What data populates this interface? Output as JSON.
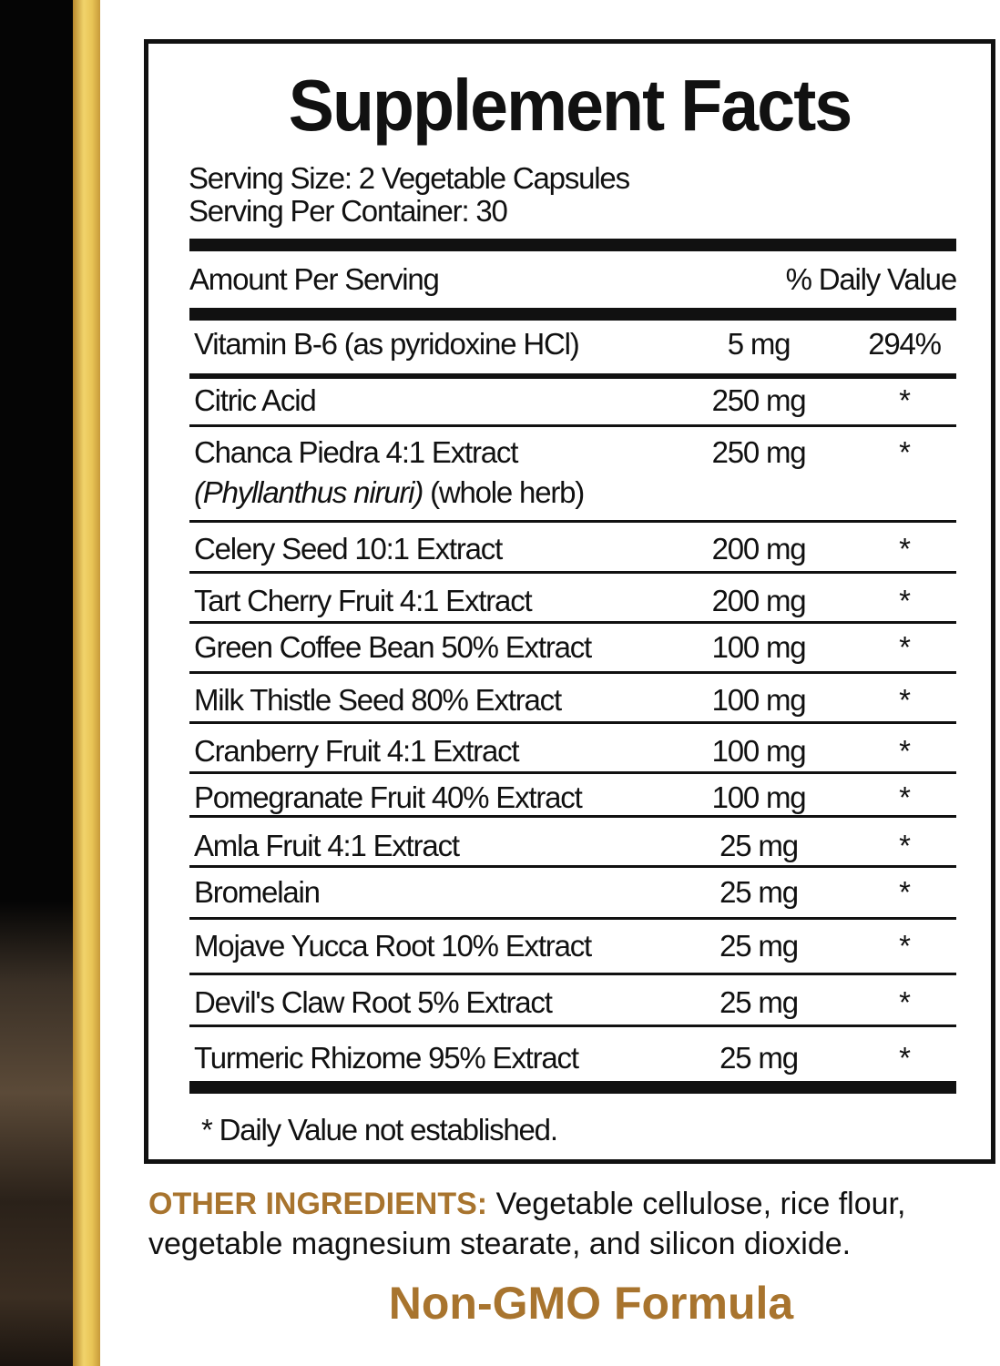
{
  "title": "Supplement Facts",
  "serving_size": "Serving Size: 2 Vegetable Capsules",
  "servings_per_container": "Serving Per Container: 30",
  "header": {
    "left": "Amount Per Serving",
    "right": "% Daily Value"
  },
  "rows": [
    {
      "name": "Vitamin B-6 (as pyridoxine HCl)",
      "amount": "5 mg",
      "dv": "294%"
    },
    {
      "name": "Citric Acid",
      "amount": "250 mg",
      "dv": "*"
    },
    {
      "name": "Chanca Piedra 4:1 Extract",
      "name_italic": "(Phyllanthus niruri)",
      "name_suffix": " (whole herb)",
      "amount": "250 mg",
      "dv": "*"
    },
    {
      "name": "Celery Seed 10:1 Extract",
      "amount": "200 mg",
      "dv": "*"
    },
    {
      "name": "Tart Cherry Fruit 4:1 Extract",
      "amount": "200 mg",
      "dv": "*"
    },
    {
      "name": "Green Coffee Bean 50% Extract",
      "amount": "100 mg",
      "dv": "*"
    },
    {
      "name": "Milk Thistle Seed 80% Extract",
      "amount": "100 mg",
      "dv": "*"
    },
    {
      "name": "Cranberry Fruit 4:1 Extract",
      "amount": "100 mg",
      "dv": "*"
    },
    {
      "name": "Pomegranate Fruit 40% Extract",
      "amount": "100 mg",
      "dv": "*"
    },
    {
      "name": "Amla Fruit 4:1 Extract",
      "amount": "25 mg",
      "dv": "*"
    },
    {
      "name": "Bromelain",
      "amount": "25 mg",
      "dv": "*"
    },
    {
      "name": "Mojave Yucca Root 10% Extract",
      "amount": "25 mg",
      "dv": "*"
    },
    {
      "name": "Devil's Claw Root 5% Extract",
      "amount": "25 mg",
      "dv": "*"
    },
    {
      "name": "Turmeric Rhizome 95% Extract",
      "amount": "25 mg",
      "dv": "*"
    }
  ],
  "footnote": "* Daily Value not established.",
  "other_ingredients": {
    "label": "OTHER INGREDIENTS:",
    "text": " Vegetable cellulose, rice flour, vegetable magnesium stearate, and silicon dioxide."
  },
  "badge": "Non-GMO Formula",
  "colors": {
    "accent_gold": "#a8742e",
    "text": "#111111",
    "strip_gold": "#e8c456"
  }
}
